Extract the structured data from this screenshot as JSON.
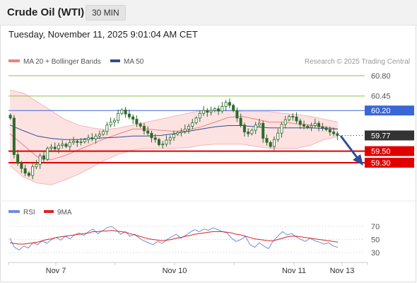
{
  "header": {
    "instrument": "Crude Oil (WTI)",
    "timeframe": "30 MIN"
  },
  "datetime": "Tuesday, November 11, 2025 9:01:04 AM CET",
  "legend": {
    "bollinger": "MA 20 + Bollinger Bands",
    "ma50": "MA 50",
    "rsi": "RSI",
    "rsi_ma": "9MA"
  },
  "copyright": "Research © 2025 Trading Central",
  "colors": {
    "candle": "#2d6b2d",
    "band_fill": "#fde2e2",
    "ma20": "#f08080",
    "ma50": "#2f4f8f",
    "resistance_far": "#8bc34a",
    "pivot": "#3a66d6",
    "support": "#e00000",
    "current": "#333333",
    "arrow": "#2b4f9a",
    "rsi": "#6f8fdc",
    "rsi_ma": "#dd2222"
  },
  "chart_data": {
    "type": "candlestick",
    "y_range": [
      59.0,
      61.0
    ],
    "levels": [
      {
        "value": 60.8,
        "label": "60.80",
        "kind": "resistance"
      },
      {
        "value": 60.45,
        "label": "60.45",
        "kind": "resistance"
      },
      {
        "value": 60.2,
        "label": "60.20",
        "kind": "pivot"
      },
      {
        "value": 59.77,
        "label": "59.77",
        "kind": "current"
      },
      {
        "value": 59.5,
        "label": "59.50",
        "kind": "support"
      },
      {
        "value": 59.3,
        "label": "59.30",
        "kind": "support"
      }
    ],
    "x_labels": [
      "Nov 7",
      "Nov 10",
      "Nov 11",
      "Nov 13"
    ],
    "closes": [
      60.07,
      59.44,
      59.29,
      59.2,
      59.12,
      59.08,
      59.23,
      59.27,
      59.42,
      59.36,
      59.55,
      59.57,
      59.54,
      59.6,
      59.62,
      59.58,
      59.65,
      59.67,
      59.65,
      59.66,
      59.7,
      59.73,
      59.71,
      59.76,
      59.79,
      59.84,
      59.95,
      60.0,
      60.03,
      60.15,
      60.21,
      60.14,
      60.09,
      60.05,
      59.97,
      59.93,
      59.85,
      59.81,
      59.73,
      59.7,
      59.61,
      59.62,
      59.69,
      59.73,
      59.79,
      59.82,
      59.84,
      59.88,
      59.93,
      59.99,
      60.07,
      60.15,
      60.2,
      60.17,
      60.2,
      60.23,
      60.19,
      60.27,
      60.34,
      60.29,
      60.2,
      60.07,
      59.95,
      59.83,
      59.8,
      59.86,
      59.95,
      59.98,
      59.72,
      59.65,
      59.58,
      59.7,
      59.81,
      59.96,
      60.04,
      60.1,
      60.09,
      60.02,
      59.96,
      59.93,
      59.91,
      59.94,
      59.98,
      59.92,
      59.9,
      59.87,
      59.83,
      59.8,
      59.77
    ],
    "bb_upper": [
      60.55,
      60.5,
      60.35,
      60.2,
      60.05,
      59.95,
      59.9,
      59.87,
      59.9,
      59.95,
      60.0,
      60.05,
      60.1,
      60.15,
      60.2,
      60.2,
      60.2,
      60.18,
      60.18,
      60.18,
      60.15,
      60.13,
      60.1,
      60.05,
      60.0
    ],
    "bb_lower": [
      59.25,
      59.05,
      58.95,
      58.92,
      59.0,
      59.1,
      59.22,
      59.35,
      59.45,
      59.52,
      59.55,
      59.55,
      59.55,
      59.56,
      59.6,
      59.62,
      59.62,
      59.62,
      59.58,
      59.55,
      59.55,
      59.55,
      59.6,
      59.7,
      59.75
    ],
    "ma20": [
      59.8,
      59.6,
      59.4,
      59.35,
      59.42,
      59.52,
      59.62,
      59.72,
      59.8,
      59.88,
      59.88,
      59.86,
      59.84,
      59.86,
      59.92,
      60.0,
      60.08,
      60.1,
      60.05,
      60.0,
      60.0,
      59.97,
      59.95,
      59.92,
      59.88
    ],
    "ma50": [
      59.95,
      59.85,
      59.76,
      59.72,
      59.7,
      59.7,
      59.72,
      59.73,
      59.74,
      59.76,
      59.76,
      59.77,
      59.8,
      59.84,
      59.88,
      59.92,
      59.94,
      59.94,
      59.92,
      59.9,
      59.9,
      59.9,
      59.9,
      59.89,
      59.88
    ],
    "rsi_axis": [
      70,
      50,
      30
    ],
    "rsi_range": [
      25,
      75
    ],
    "rsi": [
      52,
      38,
      34,
      40,
      37,
      45,
      42,
      48,
      44,
      50,
      53,
      49,
      55,
      51,
      57,
      60,
      56,
      62,
      66,
      59,
      63,
      68,
      70,
      65,
      58,
      62,
      55,
      58,
      52,
      48,
      45,
      42,
      47,
      44,
      50,
      54,
      58,
      52,
      56,
      61,
      65,
      62,
      66,
      64,
      68,
      65,
      62,
      60,
      52,
      47,
      50,
      55,
      42,
      38,
      45,
      40,
      36,
      48,
      55,
      62,
      57,
      59,
      54,
      50,
      47,
      52,
      48,
      46,
      43,
      45,
      40,
      38
    ],
    "rsi_ma": [
      45,
      44,
      43,
      43,
      44,
      45,
      46,
      48,
      50,
      51,
      53,
      54,
      55,
      56,
      57,
      58,
      59,
      60,
      62,
      62,
      63,
      63,
      64,
      63,
      62,
      61,
      59,
      57,
      55,
      53,
      51,
      50,
      49,
      48,
      49,
      50,
      52,
      53,
      55,
      56,
      58,
      59,
      60,
      61,
      62,
      62,
      62,
      61,
      60,
      58,
      57,
      55,
      53,
      51,
      50,
      49,
      48,
      48,
      50,
      52,
      54,
      55,
      55,
      54,
      53,
      52,
      51,
      50,
      49,
      48,
      47,
      46
    ]
  }
}
